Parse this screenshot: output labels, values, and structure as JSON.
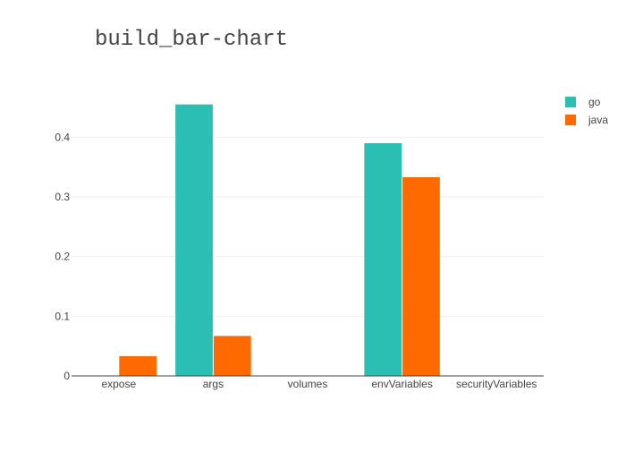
{
  "chart_data": {
    "type": "bar",
    "title": "build_bar-chart",
    "xlabel": "",
    "ylabel": "",
    "categories": [
      "expose",
      "args",
      "volumes",
      "envVariables",
      "securityVariables"
    ],
    "series": [
      {
        "name": "go",
        "values": [
          0,
          0.455,
          0,
          0.39,
          0
        ],
        "color": "#2ABFB2"
      },
      {
        "name": "java",
        "values": [
          0.033,
          0.067,
          0,
          0.333,
          0
        ],
        "color": "#FF6A00"
      }
    ],
    "ylim": [
      0,
      0.48
    ],
    "yticks": [
      0,
      0.1,
      0.2,
      0.3,
      0.4
    ],
    "ytick_labels": [
      "0",
      "0.1",
      "0.2",
      "0.3",
      "0.4"
    ],
    "grid": true,
    "legend_position": "top-right"
  }
}
